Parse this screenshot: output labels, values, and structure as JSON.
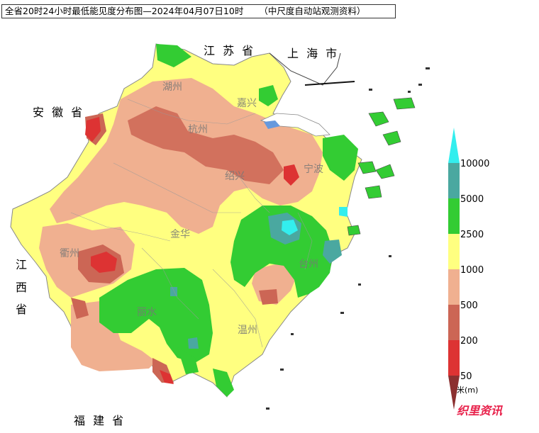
{
  "title": "全省20时24小时最低能见度分布图—2024年04月07日10时",
  "source_note": "（中尺度自动站观测资料）",
  "provinces": {
    "jiangsu": "江 苏 省",
    "shanghai": "上 海 市",
    "anhui": "安 徽 省",
    "jiangxi_1": "江",
    "jiangxi_2": "西",
    "jiangxi_3": "省",
    "fujian": "福 建 省"
  },
  "cities": {
    "huzhou": "湖州",
    "jiaxing": "嘉兴",
    "hangzhou": "杭州",
    "shaoxing": "绍兴",
    "ningbo": "宁波",
    "jinhua": "金华",
    "quzhou": "衢州",
    "taizhou": "台州",
    "lishui": "丽水",
    "wenzhou": "温州"
  },
  "legend": {
    "unit": "米(m)",
    "labels": [
      "10000",
      "5000",
      "2500",
      "1000",
      "500",
      "200",
      "50"
    ],
    "colors": {
      "above_10000": "#33eeee",
      "5000_10000": "#4aa8a0",
      "2500_5000": "#33cc33",
      "1000_2500": "#ffff80",
      "500_1000": "#f0b090",
      "200_500": "#cc6655",
      "50_200": "#dd3333",
      "below_50": "#8b3030"
    }
  },
  "logo": "织里资讯"
}
